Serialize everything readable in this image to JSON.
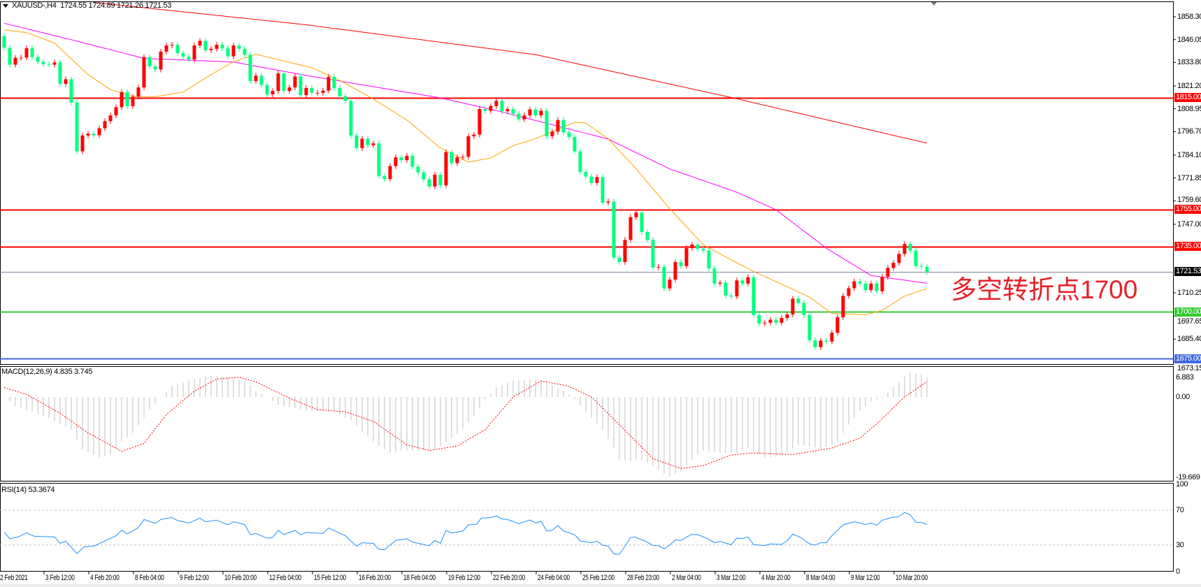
{
  "header": {
    "symbol": "XAUUSD-,H4",
    "ohlc": "1724.55 1724.89 1721.26 1721.53"
  },
  "annotation": "多空转折点1700",
  "colors": {
    "up": "#ff0000",
    "down": "#00ff7f",
    "ma_slow": "#ff0000",
    "ma_mid": "#ff00ff",
    "ma_fast": "#ffa500",
    "macd_hist": "#c0c0c0",
    "macd_signal": "#ff0000",
    "rsi": "#1e90ff"
  },
  "price_axis": {
    "labels": [
      "1858.30",
      "1846.05",
      "1833.80",
      "1821.20",
      "1808.95",
      "1796.70",
      "1784.10",
      "1771.85",
      "1759.60",
      "1747.00",
      "1710.25",
      "1697.65",
      "1685.40",
      "1673.15"
    ]
  },
  "levels": [
    {
      "price": 1815.0,
      "label": "1815.00",
      "color": "#ff0000"
    },
    {
      "price": 1755.0,
      "label": "1755.00",
      "color": "#ff0000"
    },
    {
      "price": 1735.0,
      "label": "1735.00",
      "color": "#ff0000"
    },
    {
      "price": 1721.53,
      "label": "1721.53",
      "color": "#7a8599",
      "tag_color": "#000000"
    },
    {
      "price": 1700.0,
      "label": "1700.00",
      "color": "#32cd32"
    },
    {
      "price": 1675.0,
      "label": "1675.00",
      "color": "#4169e1"
    }
  ],
  "time_axis": [
    "2 Feb 2021",
    "3 Feb 12:00",
    "4 Feb 20:00",
    "8 Feb 04:00",
    "9 Feb 12:00",
    "10 Feb 20:00",
    "12 Feb 04:00",
    "15 Feb 12:00",
    "16 Feb 20:00",
    "18 Feb 04:00",
    "19 Feb 12:00",
    "22 Feb 20:00",
    "24 Feb 04:00",
    "25 Feb 12:00",
    "28 Feb 23:00",
    "2 Mar 04:00",
    "3 Mar 12:00",
    "4 Mar 20:00",
    "8 Mar 04:00",
    "9 Mar 12:00",
    "10 Mar 20:00"
  ],
  "macd": {
    "label": "MACD(12,26,9) 4.835 3.745",
    "axis": [
      "6.883",
      "0.00",
      "-19.669"
    ]
  },
  "rsi": {
    "label": "RSI(14) 53.3674",
    "axis": [
      "100",
      "70",
      "30",
      "0"
    ],
    "levels": [
      70,
      30
    ]
  },
  "chart_data": {
    "type": "candlestick",
    "title": "XAUUSD-,H4",
    "ylim": [
      1673.15,
      1858.3
    ],
    "first_open": 1847.9,
    "close": [
      1841.7,
      1832.6,
      1836.3,
      1836.4,
      1841.4,
      1836.7,
      1834.2,
      1832.9,
      1832.6,
      1833.8,
      1822.3,
      1824.8,
      1812.3,
      1786.1,
      1794.6,
      1795.6,
      1794.8,
      1798.5,
      1802.3,
      1805.4,
      1809.8,
      1817.9,
      1810.4,
      1815.4,
      1820.4,
      1836.7,
      1831.7,
      1830.0,
      1839.6,
      1842.9,
      1843.3,
      1838.8,
      1836.9,
      1835.4,
      1842.9,
      1845.4,
      1840.4,
      1841.1,
      1843.3,
      1841.4,
      1837.1,
      1842.9,
      1841.1,
      1837.9,
      1823.8,
      1826.7,
      1821.7,
      1816.7,
      1818.5,
      1827.9,
      1818.5,
      1820.4,
      1826.3,
      1816.3,
      1820.1,
      1817.5,
      1817.5,
      1818.7,
      1826.1,
      1820.1,
      1815.7,
      1813.2,
      1794.6,
      1787.9,
      1792.9,
      1789.4,
      1790.4,
      1772.9,
      1771.3,
      1778.2,
      1782.9,
      1781.4,
      1783.7,
      1777.9,
      1774.8,
      1771.1,
      1767.3,
      1773.6,
      1767.9,
      1785.7,
      1779.8,
      1782.9,
      1783.2,
      1794.2,
      1795.1,
      1808.8,
      1807.8,
      1810.4,
      1813.2,
      1807.6,
      1808.8,
      1806.3,
      1803.3,
      1805.4,
      1808.6,
      1805.4,
      1807.9,
      1794.2,
      1796.7,
      1802.9,
      1796.3,
      1793.8,
      1786.1,
      1775.1,
      1772.6,
      1769.2,
      1772.3,
      1758.6,
      1759.2,
      1729.2,
      1726.7,
      1738.6,
      1750.8,
      1753.3,
      1742.9,
      1738.6,
      1723.8,
      1724.2,
      1712.6,
      1717.3,
      1726.7,
      1724.6,
      1734.2,
      1736.1,
      1733.8,
      1732.9,
      1723.3,
      1715.2,
      1715.7,
      1708.8,
      1708.3,
      1716.9,
      1715.2,
      1718.6,
      1698.3,
      1693.8,
      1694.2,
      1695.8,
      1694.2,
      1696.7,
      1698.6,
      1707.1,
      1704.8,
      1698.3,
      1684.8,
      1681.1,
      1684.6,
      1684.1,
      1688.8,
      1697.1,
      1708.6,
      1712.7,
      1716.4,
      1715.2,
      1711.7,
      1715.2,
      1711.1,
      1718.8,
      1723.6,
      1726.3,
      1731.1,
      1736.4,
      1732.9,
      1724.6,
      1724.2,
      1721.53
    ],
    "moving_averages": [
      {
        "color": "#ff0000",
        "points": [
          [
            16,
            1866
          ],
          [
            54,
            1854
          ],
          [
            95,
            1838
          ],
          [
            130,
            1815
          ],
          [
            165,
            1790.5
          ]
        ]
      },
      {
        "color": "#ff00ff",
        "points": [
          [
            0,
            1854.8
          ],
          [
            12,
            1846
          ],
          [
            25,
            1836
          ],
          [
            37,
            1834.5
          ],
          [
            41,
            1834
          ],
          [
            55,
            1826.3
          ],
          [
            78,
            1814.8
          ],
          [
            88,
            1808
          ],
          [
            98,
            1800.4
          ],
          [
            108,
            1792.7
          ],
          [
            119,
            1776.7
          ],
          [
            131,
            1764.2
          ],
          [
            138,
            1754.8
          ],
          [
            147,
            1734.2
          ],
          [
            155,
            1719.5
          ],
          [
            165,
            1715.4
          ]
        ]
      },
      {
        "color": "#ffa500",
        "points": [
          [
            0,
            1851.3
          ],
          [
            4,
            1849.8
          ],
          [
            9,
            1844.2
          ],
          [
            15,
            1827.3
          ],
          [
            19,
            1819.2
          ],
          [
            23,
            1815.7
          ],
          [
            27,
            1815.4
          ],
          [
            32,
            1817.9
          ],
          [
            37,
            1827.3
          ],
          [
            41,
            1834.2
          ],
          [
            45,
            1838.2
          ],
          [
            55,
            1831
          ],
          [
            60,
            1824.2
          ],
          [
            66,
            1814.2
          ],
          [
            72,
            1802.9
          ],
          [
            78,
            1787.9
          ],
          [
            83,
            1780.4
          ],
          [
            87,
            1782.5
          ],
          [
            91,
            1789.2
          ],
          [
            95,
            1792.9
          ],
          [
            102,
            1801.7
          ],
          [
            104,
            1801.3
          ],
          [
            108,
            1792.9
          ],
          [
            113,
            1776.7
          ],
          [
            119,
            1755.4
          ],
          [
            125,
            1736
          ],
          [
            130,
            1727.9
          ],
          [
            134,
            1721.7
          ],
          [
            140,
            1713.5
          ],
          [
            144,
            1707.9
          ],
          [
            148,
            1699.2
          ],
          [
            154,
            1698.5
          ],
          [
            157,
            1700.8
          ],
          [
            161,
            1708.5
          ],
          [
            165,
            1712.5
          ]
        ]
      }
    ],
    "macd_hist": [
      [
        0,
        -0.2
      ],
      [
        2,
        -2.2
      ],
      [
        5,
        -3.7
      ],
      [
        8,
        -5.1
      ],
      [
        12,
        -8
      ],
      [
        14,
        -12.8
      ],
      [
        17,
        -14.8
      ],
      [
        19,
        -14.2
      ],
      [
        21,
        -10.8
      ],
      [
        23,
        -8.8
      ],
      [
        26,
        -3.1
      ],
      [
        28,
        0
      ],
      [
        30,
        2.7
      ],
      [
        33,
        4
      ],
      [
        36,
        5
      ],
      [
        38,
        5.2
      ],
      [
        40,
        4.8
      ],
      [
        43,
        4
      ],
      [
        45,
        1.4
      ],
      [
        47,
        0
      ],
      [
        49,
        -2
      ],
      [
        52,
        -2.8
      ],
      [
        55,
        -3.4
      ],
      [
        59,
        -3.7
      ],
      [
        62,
        -5.7
      ],
      [
        64,
        -8.5
      ],
      [
        67,
        -12
      ],
      [
        69,
        -13.7
      ],
      [
        71,
        -13.1
      ],
      [
        74,
        -13.1
      ],
      [
        77,
        -12.8
      ],
      [
        79,
        -11.1
      ],
      [
        81,
        -9.1
      ],
      [
        84,
        -4.8
      ],
      [
        86,
        -0.6
      ],
      [
        88,
        2.3
      ],
      [
        91,
        4
      ],
      [
        94,
        4.2
      ],
      [
        96,
        4
      ],
      [
        99,
        2.1
      ],
      [
        101,
        0.7
      ],
      [
        103,
        -2
      ],
      [
        105,
        -5.1
      ],
      [
        107,
        -8
      ],
      [
        109,
        -12.5
      ],
      [
        110,
        -15.3
      ],
      [
        112,
        -15.7
      ],
      [
        114,
        -15.4
      ],
      [
        116,
        -16.8
      ],
      [
        118,
        -18.8
      ],
      [
        119,
        -19.4
      ],
      [
        121,
        -18.2
      ],
      [
        123,
        -15.4
      ],
      [
        125,
        -13.1
      ],
      [
        128,
        -13.7
      ],
      [
        131,
        -13.7
      ],
      [
        133,
        -12.5
      ],
      [
        136,
        -14.8
      ],
      [
        139,
        -14.5
      ],
      [
        142,
        -11.7
      ],
      [
        144,
        -12
      ],
      [
        146,
        -12.8
      ],
      [
        149,
        -11.1
      ],
      [
        150,
        -8.8
      ],
      [
        151,
        -6.8
      ],
      [
        153,
        -3.4
      ],
      [
        155,
        -1.1
      ],
      [
        157,
        -0.2
      ],
      [
        158,
        1.1
      ],
      [
        160,
        3.7
      ],
      [
        161,
        5.1
      ],
      [
        162,
        5.9
      ],
      [
        164,
        5.5
      ],
      [
        165,
        4.835
      ]
    ],
    "macd_signal": [
      [
        0,
        2.3
      ],
      [
        4,
        0.6
      ],
      [
        10,
        -4
      ],
      [
        15,
        -8.8
      ],
      [
        21,
        -13.3
      ],
      [
        25,
        -11.4
      ],
      [
        29,
        -4.3
      ],
      [
        34,
        1.4
      ],
      [
        38,
        4.4
      ],
      [
        42,
        4.8
      ],
      [
        45,
        3.7
      ],
      [
        51,
        -0.3
      ],
      [
        56,
        -3.1
      ],
      [
        61,
        -3.6
      ],
      [
        66,
        -6
      ],
      [
        72,
        -11.7
      ],
      [
        76,
        -13.1
      ],
      [
        81,
        -12
      ],
      [
        86,
        -8
      ],
      [
        91,
        0
      ],
      [
        96,
        3.9
      ],
      [
        101,
        2.6
      ],
      [
        105,
        0
      ],
      [
        110,
        -6.8
      ],
      [
        116,
        -15.1
      ],
      [
        121,
        -17.5
      ],
      [
        125,
        -16.8
      ],
      [
        130,
        -14.2
      ],
      [
        134,
        -13.7
      ],
      [
        141,
        -14.1
      ],
      [
        148,
        -12.5
      ],
      [
        153,
        -10.1
      ],
      [
        156,
        -6.6
      ],
      [
        161,
        0
      ],
      [
        165,
        3.745
      ]
    ],
    "macd_range": [
      -19.669,
      6.883
    ],
    "rsi": [
      [
        0,
        44.7
      ],
      [
        1,
        37.2
      ],
      [
        2.5,
        39.3
      ],
      [
        4,
        44.1
      ],
      [
        5.4,
        40.1
      ],
      [
        9,
        39.3
      ],
      [
        10,
        32.1
      ],
      [
        11,
        34.5
      ],
      [
        13,
        20.4
      ],
      [
        14.3,
        27.9
      ],
      [
        16,
        28.7
      ],
      [
        20,
        40.7
      ],
      [
        21,
        47.1
      ],
      [
        22,
        42.8
      ],
      [
        24,
        50
      ],
      [
        25,
        59.3
      ],
      [
        27,
        54.8
      ],
      [
        28,
        59.3
      ],
      [
        30,
        61.7
      ],
      [
        31,
        58
      ],
      [
        33,
        55.3
      ],
      [
        35,
        60.7
      ],
      [
        36,
        56.7
      ],
      [
        38,
        58.5
      ],
      [
        40,
        53.2
      ],
      [
        41,
        56.7
      ],
      [
        43,
        53.5
      ],
      [
        44,
        42
      ],
      [
        45,
        43.3
      ],
      [
        47,
        38
      ],
      [
        48,
        38.5
      ],
      [
        49,
        46.8
      ],
      [
        50,
        42
      ],
      [
        52,
        46.8
      ],
      [
        53,
        42
      ],
      [
        54,
        44.4
      ],
      [
        57,
        43.3
      ],
      [
        58,
        49.5
      ],
      [
        61,
        40.7
      ],
      [
        63,
        28.7
      ],
      [
        64,
        32.7
      ],
      [
        66,
        31.9
      ],
      [
        67,
        25.2
      ],
      [
        68,
        24.7
      ],
      [
        70,
        35.3
      ],
      [
        72,
        37.2
      ],
      [
        73,
        33.5
      ],
      [
        76,
        29.2
      ],
      [
        77,
        35.3
      ],
      [
        78,
        32.1
      ],
      [
        79,
        46.8
      ],
      [
        80,
        43.9
      ],
      [
        82,
        46
      ],
      [
        83,
        53.2
      ],
      [
        84.5,
        54
      ],
      [
        85.3,
        60.9
      ],
      [
        87,
        61.5
      ],
      [
        88,
        63.3
      ],
      [
        89,
        59.9
      ],
      [
        90,
        59.3
      ],
      [
        92,
        54.5
      ],
      [
        94,
        58.8
      ],
      [
        95,
        55.3
      ],
      [
        96,
        57.2
      ],
      [
        97,
        46
      ],
      [
        98,
        47.1
      ],
      [
        99,
        52.4
      ],
      [
        100,
        46
      ],
      [
        102,
        42
      ],
      [
        103,
        34.8
      ],
      [
        105,
        32.7
      ],
      [
        106,
        34.5
      ],
      [
        107,
        30
      ],
      [
        108,
        28.7
      ],
      [
        109,
        19.9
      ],
      [
        110,
        19.3
      ],
      [
        112,
        38.5
      ],
      [
        112.8,
        39.3
      ],
      [
        114.8,
        34
      ],
      [
        116,
        29.5
      ],
      [
        117,
        29.2
      ],
      [
        118,
        25.7
      ],
      [
        119,
        30
      ],
      [
        120,
        35.9
      ],
      [
        121,
        35.3
      ],
      [
        122.8,
        42
      ],
      [
        124,
        42
      ],
      [
        125.7,
        37.5
      ],
      [
        127,
        32.7
      ],
      [
        128,
        34
      ],
      [
        130,
        30.5
      ],
      [
        131,
        38
      ],
      [
        132,
        37.5
      ],
      [
        133,
        39.3
      ],
      [
        134,
        30.5
      ],
      [
        136,
        29.5
      ],
      [
        137,
        31.3
      ],
      [
        139,
        30.8
      ],
      [
        140,
        34.8
      ],
      [
        141,
        42.5
      ],
      [
        142.5,
        38.5
      ],
      [
        144,
        31.3
      ],
      [
        145,
        30
      ],
      [
        146,
        32.7
      ],
      [
        147,
        32.7
      ],
      [
        148,
        40.7
      ],
      [
        150,
        53.2
      ],
      [
        152,
        56.7
      ],
      [
        154,
        53.5
      ],
      [
        155,
        55.3
      ],
      [
        156,
        52.7
      ],
      [
        157,
        58.5
      ],
      [
        159,
        62
      ],
      [
        159.8,
        62
      ],
      [
        161,
        67.3
      ],
      [
        162,
        64.7
      ],
      [
        163,
        56.1
      ],
      [
        164,
        56.1
      ],
      [
        165,
        53.3674
      ]
    ]
  }
}
